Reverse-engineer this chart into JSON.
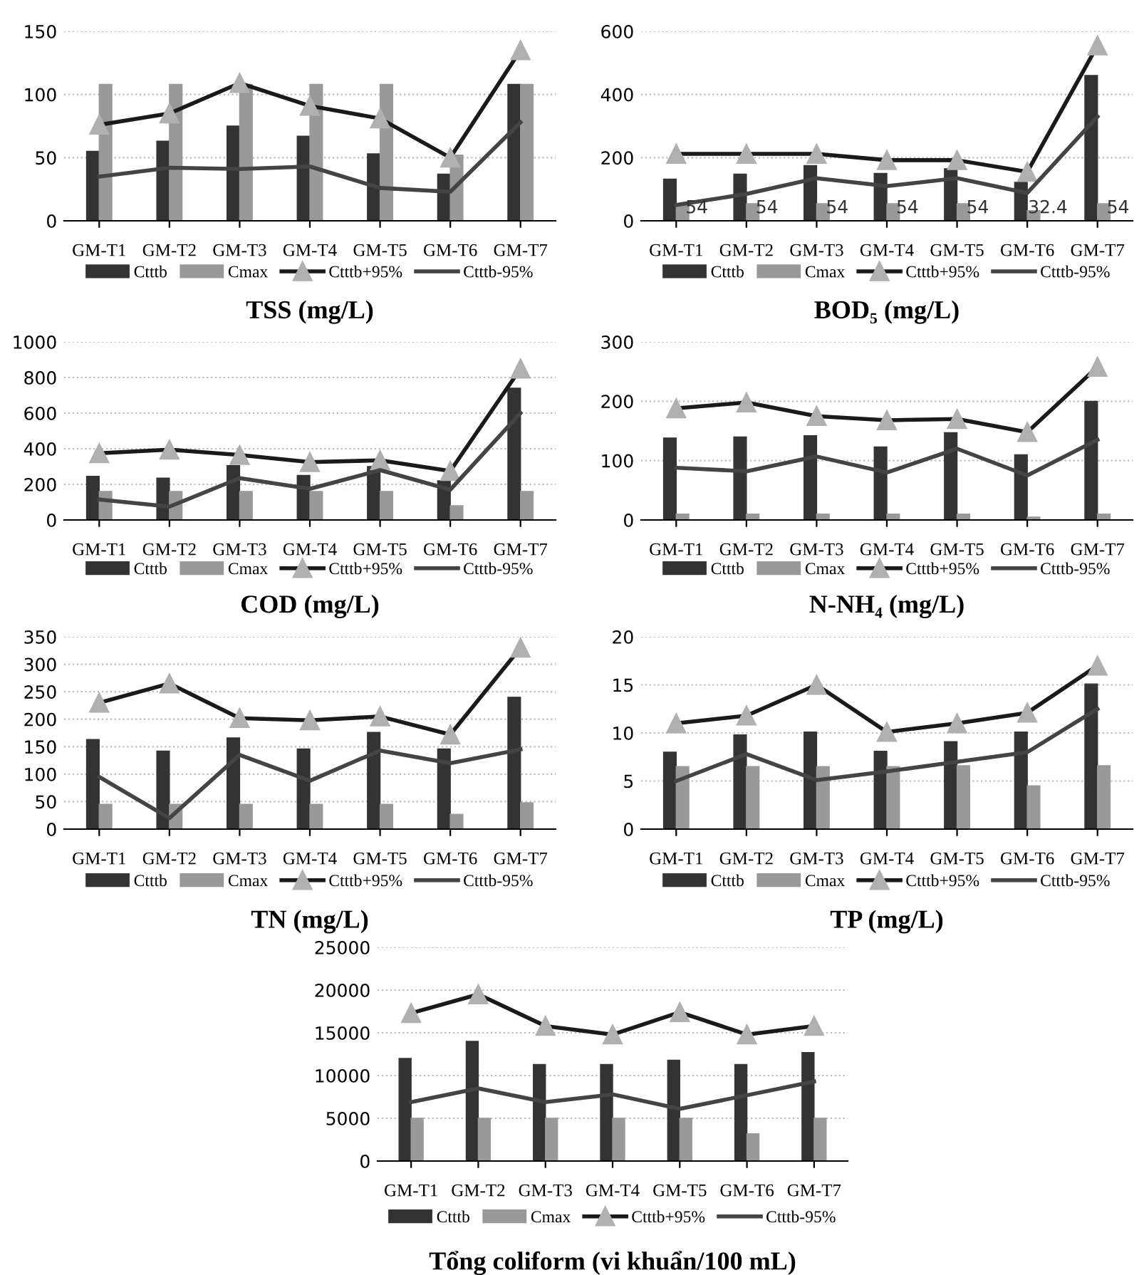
{
  "chart_data": [
    {
      "type": "bar",
      "title": "TSS (mg/L)",
      "categories": [
        "GM-T1",
        "GM-T2",
        "GM-T3",
        "GM-T4",
        "GM-T5",
        "GM-T6",
        "GM-T7"
      ],
      "ylim": [
        0,
        150
      ],
      "yticks": [
        0,
        50,
        100,
        150
      ],
      "grid": "y",
      "legend": "bottom",
      "series": [
        {
          "name": "Ctttb",
          "color": "#333333",
          "values": [
            55,
            63,
            75,
            67,
            53,
            37,
            108
          ]
        },
        {
          "name": "Cmax",
          "color": "#999999",
          "values": [
            108,
            108,
            108,
            108,
            108,
            52,
            108
          ]
        },
        {
          "name": "Ctttb+95%",
          "type": "line",
          "color": "#1a1a1a",
          "marker": "triangle",
          "line_style": "solid",
          "values": [
            76,
            85,
            109,
            91,
            81,
            50,
            135
          ]
        },
        {
          "name": "Ctttb-95%",
          "type": "line",
          "color": "#444444",
          "marker": "none",
          "line_style": "solid",
          "values": [
            35,
            42,
            41,
            43,
            26,
            23,
            78
          ]
        }
      ]
    },
    {
      "type": "bar",
      "title": "BOD₅ (mg/L)",
      "categories": [
        "GM-T1",
        "GM-T2",
        "GM-T3",
        "GM-T4",
        "GM-T5",
        "GM-T6",
        "GM-T7"
      ],
      "ylim": [
        0,
        600
      ],
      "yticks": [
        0,
        200,
        400,
        600
      ],
      "grid": "y",
      "legend": "bottom",
      "series": [
        {
          "name": "Ctttb",
          "color": "#333333",
          "values": [
            132,
            148,
            175,
            150,
            165,
            122,
            460
          ]
        },
        {
          "name": "Cmax",
          "color": "#999999",
          "values": [
            54,
            54,
            54,
            54,
            54,
            32.4,
            54
          ],
          "value_labels": [
            "54",
            "54",
            "54",
            "54",
            "54",
            "32.4",
            "54"
          ]
        },
        {
          "name": "Ctttb+95%",
          "type": "line",
          "color": "#1a1a1a",
          "marker": "triangle",
          "line_style": "solid",
          "values": [
            212,
            212,
            212,
            192,
            192,
            155,
            555
          ]
        },
        {
          "name": "Ctttb-95%",
          "type": "line",
          "color": "#444444",
          "marker": "none",
          "line_style": "solid",
          "values": [
            50,
            85,
            135,
            110,
            135,
            88,
            330
          ]
        }
      ]
    },
    {
      "type": "bar",
      "title": "COD (mg/L)",
      "categories": [
        "GM-T1",
        "GM-T2",
        "GM-T3",
        "GM-T4",
        "GM-T5",
        "GM-T6",
        "GM-T7"
      ],
      "ylim": [
        0,
        1000
      ],
      "yticks": [
        0,
        200,
        400,
        600,
        800,
        1000
      ],
      "grid": "y",
      "legend": "bottom",
      "series": [
        {
          "name": "Ctttb",
          "color": "#333333",
          "values": [
            245,
            235,
            305,
            250,
            300,
            220,
            740
          ]
        },
        {
          "name": "Cmax",
          "color": "#999999",
          "values": [
            160,
            160,
            160,
            160,
            160,
            80,
            160
          ]
        },
        {
          "name": "Ctttb+95%",
          "type": "line",
          "color": "#1a1a1a",
          "marker": "triangle",
          "line_style": "solid",
          "values": [
            375,
            395,
            365,
            325,
            335,
            275,
            850
          ]
        },
        {
          "name": "Ctttb-95%",
          "type": "line",
          "color": "#444444",
          "marker": "none",
          "line_style": "solid",
          "values": [
            115,
            75,
            235,
            175,
            280,
            170,
            600
          ]
        }
      ]
    },
    {
      "type": "bar",
      "title": "N-NH₄ (mg/L)",
      "categories": [
        "GM-T1",
        "GM-T2",
        "GM-T3",
        "GM-T4",
        "GM-T5",
        "GM-T6",
        "GM-T7"
      ],
      "ylim": [
        0,
        300
      ],
      "yticks": [
        0,
        100,
        200,
        300
      ],
      "grid": "y",
      "legend": "bottom",
      "series": [
        {
          "name": "Ctttb",
          "color": "#333333",
          "values": [
            138,
            140,
            142,
            123,
            147,
            110,
            200
          ]
        },
        {
          "name": "Cmax",
          "color": "#999999",
          "values": [
            10,
            10,
            10,
            10,
            10,
            5,
            10
          ]
        },
        {
          "name": "Ctttb+95%",
          "type": "line",
          "color": "#1a1a1a",
          "marker": "triangle",
          "line_style": "solid",
          "values": [
            188,
            198,
            175,
            168,
            170,
            148,
            258
          ]
        },
        {
          "name": "Ctttb-95%",
          "type": "line",
          "color": "#444444",
          "marker": "none",
          "line_style": "solid",
          "values": [
            88,
            82,
            107,
            80,
            120,
            75,
            135
          ]
        }
      ]
    },
    {
      "type": "bar",
      "title": "TN (mg/L)",
      "categories": [
        "GM-T1",
        "GM-T2",
        "GM-T3",
        "GM-T4",
        "GM-T5",
        "GM-T6",
        "GM-T7"
      ],
      "ylim": [
        0,
        350
      ],
      "yticks": [
        0,
        50,
        100,
        150,
        200,
        250,
        300,
        350
      ],
      "grid": "y",
      "legend": "bottom",
      "series": [
        {
          "name": "Ctttb",
          "color": "#333333",
          "values": [
            163,
            142,
            166,
            146,
            176,
            146,
            240
          ]
        },
        {
          "name": "Cmax",
          "color": "#999999",
          "values": [
            45,
            45,
            45,
            45,
            45,
            27,
            48
          ]
        },
        {
          "name": "Ctttb+95%",
          "type": "line",
          "color": "#1a1a1a",
          "marker": "triangle",
          "line_style": "solid",
          "values": [
            230,
            265,
            202,
            198,
            205,
            172,
            330
          ]
        },
        {
          "name": "Ctttb-95%",
          "type": "line",
          "color": "#444444",
          "marker": "none",
          "line_style": "solid",
          "values": [
            95,
            20,
            135,
            88,
            143,
            120,
            145
          ]
        }
      ]
    },
    {
      "type": "bar",
      "title": "TP (mg/L)",
      "categories": [
        "GM-T1",
        "GM-T2",
        "GM-T3",
        "GM-T4",
        "GM-T5",
        "GM-T6",
        "GM-T7"
      ],
      "ylim": [
        0,
        20
      ],
      "yticks": [
        0,
        5,
        10,
        15,
        20
      ],
      "grid": "y",
      "legend": "bottom",
      "series": [
        {
          "name": "Ctttb",
          "color": "#333333",
          "values": [
            8,
            9.8,
            10.1,
            8.1,
            9.1,
            10.1,
            15.1
          ]
        },
        {
          "name": "Cmax",
          "color": "#999999",
          "values": [
            6.5,
            6.5,
            6.5,
            6.5,
            6.6,
            4.5,
            6.6
          ]
        },
        {
          "name": "Ctttb+95%",
          "type": "line",
          "color": "#1a1a1a",
          "marker": "triangle",
          "line_style": "solid",
          "values": [
            11,
            11.8,
            15,
            10.1,
            11,
            12.1,
            17
          ]
        },
        {
          "name": "Ctttb-95%",
          "type": "line",
          "color": "#444444",
          "marker": "none",
          "line_style": "solid",
          "values": [
            5,
            7.8,
            5.1,
            6,
            7,
            8,
            12.5
          ]
        }
      ]
    },
    {
      "type": "bar",
      "title": "Tổng coliform (vi khuẩn/100 mL)",
      "categories": [
        "GM-T1",
        "GM-T2",
        "GM-T3",
        "GM-T4",
        "GM-T5",
        "GM-T6",
        "GM-T7"
      ],
      "ylim": [
        0,
        25000
      ],
      "yticks": [
        0,
        5000,
        10000,
        15000,
        20000,
        25000
      ],
      "grid": "y",
      "legend": "bottom",
      "series": [
        {
          "name": "Ctttb",
          "color": "#333333",
          "values": [
            12000,
            14000,
            11300,
            11300,
            11800,
            11300,
            12700
          ]
        },
        {
          "name": "Cmax",
          "color": "#999999",
          "values": [
            5000,
            5000,
            5000,
            5000,
            5000,
            3200,
            5000
          ]
        },
        {
          "name": "Ctttb+95%",
          "type": "line",
          "color": "#1a1a1a",
          "marker": "triangle",
          "line_style": "solid",
          "values": [
            17300,
            19500,
            15800,
            14800,
            17400,
            14800,
            15800
          ]
        },
        {
          "name": "Ctttb-95%",
          "type": "line",
          "color": "#444444",
          "marker": "none",
          "line_style": "solid",
          "values": [
            6900,
            8500,
            6900,
            7800,
            6100,
            7700,
            9300
          ]
        }
      ]
    }
  ]
}
